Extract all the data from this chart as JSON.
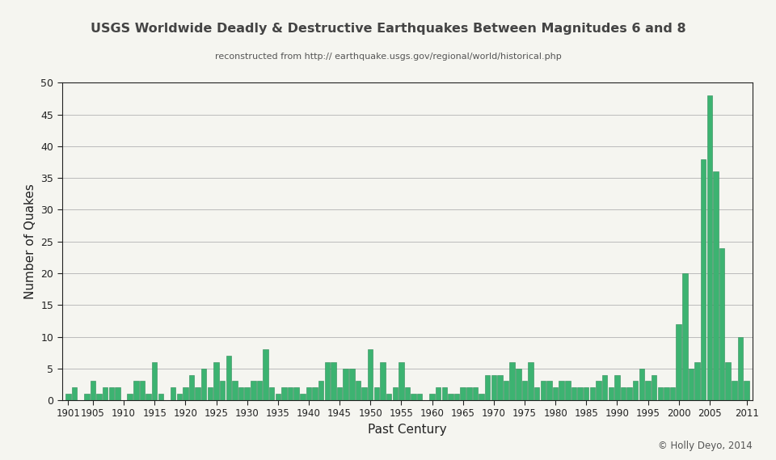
{
  "title": "USGS Worldwide Deadly & Destructive Earthquakes Between Magnitudes 6 and 8",
  "subtitle": "reconstructed from http:// earthquake.usgs.gov/regional/world/historical.php",
  "xlabel": "Past Century",
  "ylabel": "Number of Quakes",
  "copyright": "© Holly Deyo, 2014",
  "bar_color": "#3cb371",
  "bar_edge_color": "#2e8b57",
  "background_color": "#f5f5f0",
  "ylim": [
    0,
    50
  ],
  "yticks": [
    0,
    5,
    10,
    15,
    20,
    25,
    30,
    35,
    40,
    45,
    50
  ],
  "xtick_labels": [
    "1901",
    "1905",
    "1910",
    "1915",
    "1920",
    "1925",
    "1930",
    "1935",
    "1940",
    "1945",
    "1950",
    "1955",
    "1960",
    "1965",
    "1970",
    "1975",
    "1980",
    "1985",
    "1990",
    "1995",
    "2000",
    "2005",
    "2011"
  ],
  "xtick_positions": [
    1901,
    1905,
    1910,
    1915,
    1920,
    1925,
    1930,
    1935,
    1940,
    1945,
    1950,
    1955,
    1960,
    1965,
    1970,
    1975,
    1980,
    1985,
    1990,
    1995,
    2000,
    2005,
    2011
  ],
  "years": [
    1901,
    1902,
    1903,
    1904,
    1905,
    1906,
    1907,
    1908,
    1909,
    1910,
    1911,
    1912,
    1913,
    1914,
    1915,
    1916,
    1917,
    1918,
    1919,
    1920,
    1921,
    1922,
    1923,
    1924,
    1925,
    1926,
    1927,
    1928,
    1929,
    1930,
    1931,
    1932,
    1933,
    1934,
    1935,
    1936,
    1937,
    1938,
    1939,
    1940,
    1941,
    1942,
    1943,
    1944,
    1945,
    1946,
    1947,
    1948,
    1949,
    1950,
    1951,
    1952,
    1953,
    1954,
    1955,
    1956,
    1957,
    1958,
    1959,
    1960,
    1961,
    1962,
    1963,
    1964,
    1965,
    1966,
    1967,
    1968,
    1969,
    1970,
    1971,
    1972,
    1973,
    1974,
    1975,
    1976,
    1977,
    1978,
    1979,
    1980,
    1981,
    1982,
    1983,
    1984,
    1985,
    1986,
    1987,
    1988,
    1989,
    1990,
    1991,
    1992,
    1993,
    1994,
    1995,
    1996,
    1997,
    1998,
    1999,
    2000,
    2001,
    2002,
    2003,
    2004,
    2005,
    2006,
    2007,
    2008,
    2009,
    2010,
    2011
  ],
  "values": [
    1,
    2,
    0,
    1,
    3,
    1,
    2,
    2,
    2,
    0,
    1,
    3,
    3,
    1,
    6,
    1,
    0,
    2,
    1,
    2,
    4,
    2,
    5,
    2,
    6,
    3,
    7,
    3,
    2,
    2,
    3,
    3,
    8,
    2,
    1,
    2,
    2,
    2,
    1,
    2,
    2,
    3,
    6,
    6,
    2,
    5,
    5,
    3,
    2,
    8,
    2,
    6,
    1,
    2,
    6,
    2,
    1,
    1,
    0,
    1,
    2,
    2,
    1,
    1,
    2,
    2,
    2,
    1,
    4,
    4,
    4,
    3,
    6,
    5,
    3,
    6,
    2,
    3,
    3,
    2,
    3,
    3,
    2,
    2,
    2,
    2,
    3,
    4,
    2,
    4,
    2,
    2,
    3,
    5,
    3,
    4,
    2,
    2,
    2,
    12,
    20,
    5,
    6,
    38,
    48,
    36,
    24,
    6,
    3,
    10,
    3
  ]
}
